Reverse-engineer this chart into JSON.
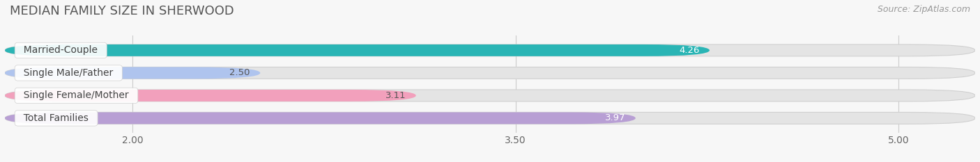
{
  "title": "MEDIAN FAMILY SIZE IN SHERWOOD",
  "source": "Source: ZipAtlas.com",
  "categories": [
    "Married-Couple",
    "Single Male/Father",
    "Single Female/Mother",
    "Total Families"
  ],
  "values": [
    4.26,
    2.5,
    3.11,
    3.97
  ],
  "bar_colors": [
    "#2ab5b5",
    "#afc4ee",
    "#f2a0bc",
    "#b89fd4"
  ],
  "value_label_colors": [
    "#ffffff",
    "#555555",
    "#555555",
    "#ffffff"
  ],
  "xlim_left": 1.5,
  "xlim_right": 5.3,
  "xticks": [
    2.0,
    3.5,
    5.0
  ],
  "background_color": "#f7f7f7",
  "bar_bg_color": "#e4e4e4",
  "bar_bg_border_color": "#d0d0d0",
  "title_fontsize": 13,
  "source_fontsize": 9,
  "label_fontsize": 10,
  "value_fontsize": 9.5,
  "bar_height": 0.52
}
